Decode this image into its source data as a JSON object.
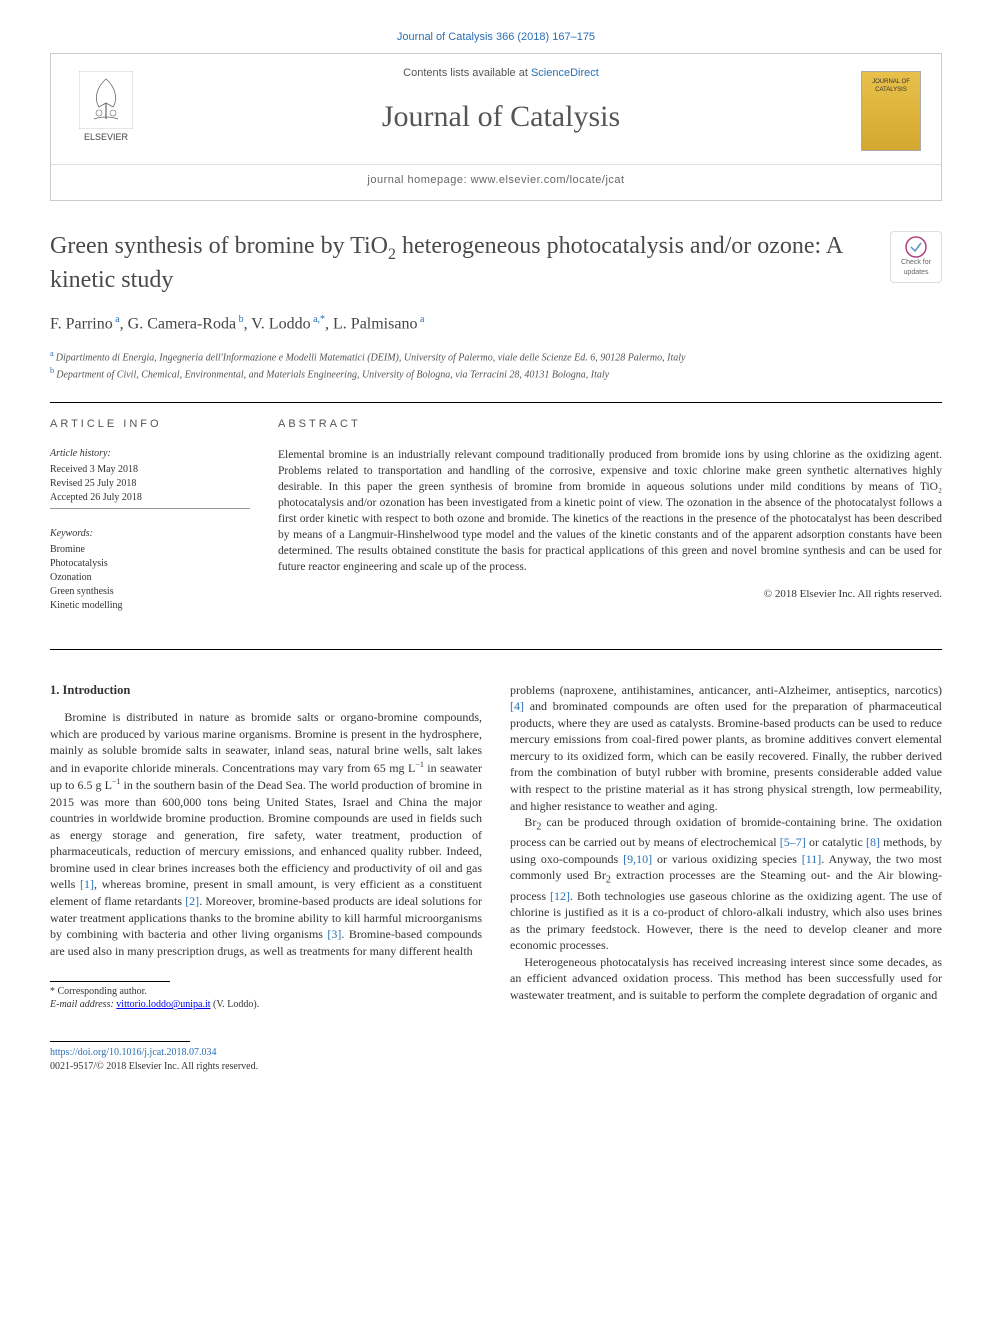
{
  "citation": "Journal of Catalysis 366 (2018) 167–175",
  "header": {
    "contents_prefix": "Contents lists available at ",
    "contents_link": "ScienceDirect",
    "journal_name": "Journal of Catalysis",
    "homepage_prefix": "journal homepage: ",
    "homepage_url": "www.elsevier.com/locate/jcat",
    "publisher": "ELSEVIER",
    "cover_text": "JOURNAL OF CATALYSIS"
  },
  "article": {
    "title_pre": "Green synthesis of bromine by TiO",
    "title_sub": "2",
    "title_post": " heterogeneous photocatalysis and/or ozone: A kinetic study",
    "updates_badge": "Check for updates",
    "authors_html": "F. Parrino|a|, G. Camera-Roda|b|, V. Loddo|a,*|, L. Palmisano|a",
    "authors": [
      {
        "name": "F. Parrino",
        "sup": "a"
      },
      {
        "name": "G. Camera-Roda",
        "sup": "b"
      },
      {
        "name": "V. Loddo",
        "sup": "a,*"
      },
      {
        "name": "L. Palmisano",
        "sup": "a"
      }
    ],
    "affiliations": [
      {
        "sup": "a",
        "text": "Dipartimento di Energia, Ingegneria dell'Informazione e Modelli Matematici (DEIM), University of Palermo, viale delle Scienze Ed. 6, 90128 Palermo, Italy"
      },
      {
        "sup": "b",
        "text": "Department of Civil, Chemical, Environmental, and Materials Engineering, University of Bologna, via Terracini 28, 40131 Bologna, Italy"
      }
    ]
  },
  "info": {
    "heading": "ARTICLE INFO",
    "history_label": "Article history:",
    "history": [
      "Received 3 May 2018",
      "Revised 25 July 2018",
      "Accepted 26 July 2018"
    ],
    "keywords_label": "Keywords:",
    "keywords": [
      "Bromine",
      "Photocatalysis",
      "Ozonation",
      "Green synthesis",
      "Kinetic modelling"
    ]
  },
  "abstract": {
    "heading": "ABSTRACT",
    "text": "Elemental bromine is an industrially relevant compound traditionally produced from bromide ions by using chlorine as the oxidizing agent. Problems related to transportation and handling of the corrosive, expensive and toxic chlorine make green synthetic alternatives highly desirable. In this paper the green synthesis of bromine from bromide in aqueous solutions under mild conditions by means of TiO₂ photocatalysis and/or ozonation has been investigated from a kinetic point of view. The ozonation in the absence of the photocatalyst follows a first order kinetic with respect to both ozone and bromide. The kinetics of the reactions in the presence of the photocatalyst has been described by means of a Langmuir-Hinshelwood type model and the values of the kinetic constants and of the apparent adsorption constants have been determined. The results obtained constitute the basis for practical applications of this green and novel bromine synthesis and can be used for future reactor engineering and scale up of the process.",
    "copyright": "© 2018 Elsevier Inc. All rights reserved."
  },
  "body": {
    "section1_heading": "1. Introduction",
    "p1": "Bromine is distributed in nature as bromide salts or organo-bromine compounds, which are produced by various marine organisms. Bromine is present in the hydrosphere, mainly as soluble bromide salts in seawater, inland seas, natural brine wells, salt lakes and in evaporite chloride minerals. Concentrations may vary from 65 mg L⁻¹ in seawater up to 6.5 g L⁻¹ in the southern basin of the Dead Sea. The world production of bromine in 2015 was more than 600,000 tons being United States, Israel and China the major countries in worldwide bromine production. Bromine compounds are used in fields such as energy storage and generation, fire safety, water treatment, production of pharmaceuticals, reduction of mercury emissions, and enhanced quality rubber. Indeed, bromine used in clear brines increases both the efficiency and productivity of oil and gas wells [1], whereas bromine, present in small amount, is very efficient as a constituent element of flame retardants [2]. Moreover, bromine-based products are ideal solutions for water treatment applications thanks to the bromine ability to kill harmful microorganisms by combining with bacteria and other living organisms [3]. Bromine-based compounds are used also in many prescription drugs, as well as treatments for many different health",
    "p2": "problems (naproxene, antihistamines, anticancer, anti-Alzheimer, antiseptics, narcotics) [4] and brominated compounds are often used for the preparation of pharmaceutical products, where they are used as catalysts. Bromine-based products can be used to reduce mercury emissions from coal-fired power plants, as bromine additives convert elemental mercury to its oxidized form, which can be easily recovered. Finally, the rubber derived from the combination of butyl rubber with bromine, presents considerable added value with respect to the pristine material as it has strong physical strength, low permeability, and higher resistance to weather and aging.",
    "p3": "Br₂ can be produced through oxidation of bromide-containing brine. The oxidation process can be carried out by means of electrochemical [5–7] or catalytic [8] methods, by using oxo-compounds [9,10] or various oxidizing species [11]. Anyway, the two most commonly used Br₂ extraction processes are the Steaming out- and the Air blowing-process [12]. Both technologies use gaseous chlorine as the oxidizing agent. The use of chlorine is justified as it is a co-product of chloro-alkali industry, which also uses brines as the primary feedstock. However, there is the need to develop cleaner and more economic processes.",
    "p4": "Heterogeneous photocatalysis has received increasing interest since some decades, as an efficient advanced oxidation process. This method has been successfully used for wastewater treatment, and is suitable to perform the complete degradation of organic and",
    "refs": {
      "1": "[1]",
      "2": "[2]",
      "3": "[3]",
      "4": "[4]",
      "5_7": "[5–7]",
      "8": "[8]",
      "9_10": "[9,10]",
      "11": "[11]",
      "12": "[12]"
    }
  },
  "corresponding": {
    "label": "* Corresponding author.",
    "email_label": "E-mail address: ",
    "email": "vittorio.loddo@unipa.it",
    "email_name": " (V. Loddo)."
  },
  "footer": {
    "doi": "https://doi.org/10.1016/j.jcat.2018.07.034",
    "issn_copyright": "0021-9517/© 2018 Elsevier Inc. All rights reserved."
  },
  "colors": {
    "link": "#2a6fb5",
    "text": "#333333",
    "heading_gray": "#555555",
    "border": "#cccccc",
    "cover_bg": "#e8c04a"
  }
}
